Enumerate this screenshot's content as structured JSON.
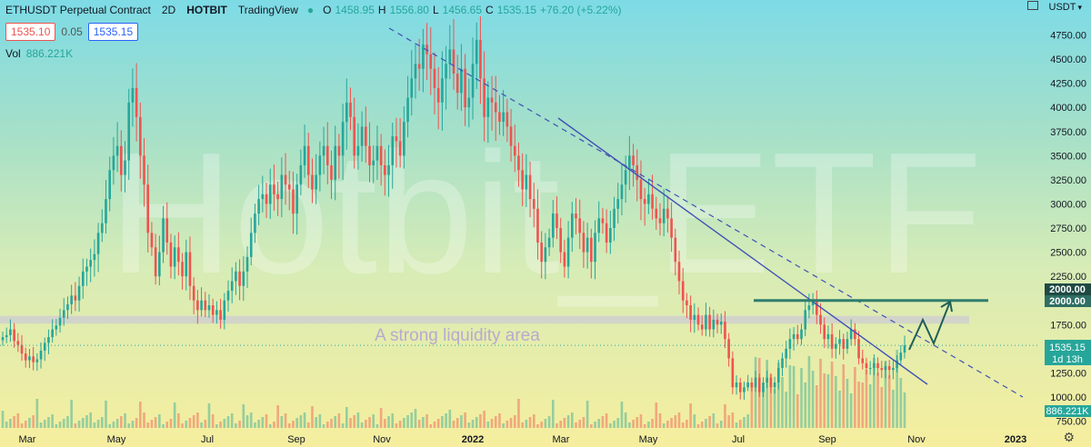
{
  "header": {
    "symbol": "ETHUSDT Perpetual Contract",
    "interval": "2D",
    "exchange": "HOTBIT",
    "platform": "TradingView",
    "status_color": "#26a69a",
    "o_label": "O",
    "o_value": "1458.95",
    "h_label": "H",
    "h_value": "1556.80",
    "l_label": "L",
    "l_value": "1456.65",
    "c_label": "C",
    "c_value": "1535.15",
    "change": "+76.20 (+5.22%)"
  },
  "quote": {
    "bid": "1535.10",
    "spread": "0.05",
    "ask": "1535.15"
  },
  "volume": {
    "label": "Vol",
    "value": "886.221K"
  },
  "currency_menu": {
    "label": "USDT",
    "icon": "chevron-down-icon"
  },
  "settings_icon": "gear-icon",
  "watermark": "Hotbit_ETF",
  "annotation": "A strong liquidity area",
  "price_axis": {
    "ticks": [
      "4750.00",
      "4500.00",
      "4250.00",
      "4000.00",
      "3750.00",
      "3500.00",
      "3250.00",
      "3000.00",
      "2750.00",
      "2500.00",
      "2250.00",
      "2000.00",
      "1750.00",
      "1500.00",
      "1250.00",
      "1000.00",
      "750.00"
    ],
    "current_price": "1535.15",
    "countdown": "1d 13h",
    "resistance_label_1": "2000.00",
    "resistance_label_2": "2000.00",
    "volume_label": "886.221K"
  },
  "time_axis": [
    "Mar",
    "May",
    "Jul",
    "Sep",
    "Nov",
    "2022",
    "Mar",
    "May",
    "Jul",
    "Sep",
    "Nov",
    "2023"
  ],
  "colors": {
    "up": "#26a69a",
    "down": "#ef5350",
    "trendline": "#3f51b5",
    "resistance": "#2e7d6e",
    "liquidity_zone": "#cfcfcf"
  },
  "chart_data": {
    "type": "candlestick",
    "title": "ETHUSDT Perpetual Contract",
    "ylim": [
      750,
      4900
    ],
    "series": [
      {
        "name": "ETHUSDT",
        "close": [
          1620,
          1640,
          1700,
          1580,
          1540,
          1450,
          1380,
          1420,
          1360,
          1390,
          1480,
          1560,
          1620,
          1700,
          1740,
          1820,
          1900,
          1960,
          2050,
          2000,
          2150,
          2300,
          2350,
          2420,
          2480,
          2700,
          2800,
          3050,
          3350,
          3500,
          3600,
          3300,
          3450,
          4050,
          4200,
          3900,
          3500,
          3200,
          2700,
          2550,
          2250,
          2500,
          2850,
          2600,
          2350,
          2550,
          2400,
          2250,
          2500,
          2150,
          2000,
          1900,
          2000,
          1900,
          1950,
          1850,
          1900,
          1800,
          2000,
          2100,
          2200,
          2300,
          2150,
          2300,
          2450,
          2700,
          2900,
          3050,
          3100,
          3000,
          3200,
          3100,
          3050,
          3300,
          3200,
          3150,
          2900,
          3200,
          3400,
          3600,
          3300,
          3150,
          3300,
          3500,
          3600,
          3400,
          3250,
          3600,
          3500,
          3850,
          4050,
          3900,
          3500,
          3600,
          3800,
          3600,
          3400,
          3450,
          3600,
          3400,
          3300,
          3400,
          3700,
          3650,
          3500,
          3850,
          4100,
          4300,
          4450,
          4400,
          4650,
          4550,
          4400,
          4200,
          4050,
          4300,
          4450,
          4600,
          4350,
          4150,
          4400,
          4000,
          4100,
          4450,
          4700,
          4300,
          3900,
          4100,
          4050,
          3950,
          3850,
          3950,
          3800,
          3600,
          3500,
          3350,
          3150,
          3300,
          3050,
          2950,
          2600,
          2400,
          2550,
          2650,
          2900,
          2750,
          2500,
          2350,
          2650,
          2900,
          2850,
          2700,
          2500,
          2650,
          2400,
          2700,
          2850,
          2800,
          2600,
          2750,
          2950,
          3050,
          3200,
          3350,
          3500,
          3400,
          3250,
          3050,
          3000,
          3100,
          2950,
          2850,
          2800,
          2950,
          2850,
          2650,
          2400,
          2200,
          2000,
          1950,
          1800,
          1850,
          1750,
          1700,
          1850,
          1700,
          1800,
          1750,
          1780,
          1600,
          1400,
          1100,
          1150,
          1050,
          1100,
          1150,
          1100,
          1200,
          1050,
          1150,
          1200,
          1100,
          1150,
          1300,
          1400,
          1500,
          1600,
          1650,
          1600,
          1700,
          1900,
          1950,
          2000,
          1850,
          1750,
          1600,
          1650,
          1500,
          1550,
          1600,
          1500,
          1600,
          1700,
          1600,
          1400,
          1350,
          1300,
          1300,
          1350,
          1300,
          1280,
          1320,
          1280,
          1300,
          1380,
          1460,
          1535
        ]
      }
    ],
    "trendlines": [
      {
        "name": "dashed",
        "from": {
          "x": "Nov 2021",
          "y": 4850
        },
        "to": {
          "x": "Dec 2022",
          "y": 1010
        }
      },
      {
        "name": "solid",
        "from": {
          "x": "Feb 2022",
          "y": 3900
        },
        "to": {
          "x": "Nov 2022",
          "y": 1140
        }
      }
    ],
    "resistance_level": 2000,
    "liquidity_zone": [
      1760,
      1840
    ],
    "current_price": 1535.15
  }
}
